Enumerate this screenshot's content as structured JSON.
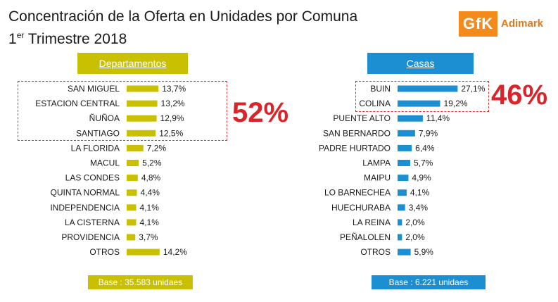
{
  "header": {
    "title": "Concentración de la Oferta en Unidades por Comuna",
    "subtitle_pre": "1",
    "subtitle_sup": "er",
    "subtitle_post": " Trimestre 2018"
  },
  "logo": {
    "mark": "GfK",
    "name": "Adimark",
    "color": "#f28a1c"
  },
  "panels": {
    "departamentos": {
      "title": "Departamentos",
      "highlight_pct": "52%",
      "base": "Base : 35.583 unidaes",
      "color": "#c8c000"
    },
    "casas": {
      "title": "Casas",
      "highlight_pct": "46%",
      "base": "Base : 6.221 unidaes",
      "color": "#1b8fd2"
    }
  },
  "chart_data": [
    {
      "type": "bar",
      "orientation": "horizontal",
      "title": "Departamentos",
      "categories": [
        "SAN MIGUEL",
        "ESTACION CENTRAL",
        "ÑUÑOA",
        "SANTIAGO",
        "LA FLORIDA",
        "MACUL",
        "LAS CONDES",
        "QUINTA NORMAL",
        "INDEPENDENCIA",
        "LA CISTERNA",
        "PROVIDENCIA",
        "OTROS"
      ],
      "values": [
        13.7,
        13.2,
        12.9,
        12.5,
        7.2,
        5.2,
        4.8,
        4.4,
        4.1,
        4.1,
        3.7,
        14.2
      ],
      "labels": [
        "13,7%",
        "13,2%",
        "12,9%",
        "12,5%",
        "7,2%",
        "5,2%",
        "4,8%",
        "4,4%",
        "4,1%",
        "4,1%",
        "3,7%",
        "14,2%"
      ],
      "unit": "%",
      "color": "#c8c000",
      "highlighted_count": 4,
      "highlighted_total": "52%"
    },
    {
      "type": "bar",
      "orientation": "horizontal",
      "title": "Casas",
      "categories": [
        "BUIN",
        "COLINA",
        "PUENTE ALTO",
        "SAN BERNARDO",
        "PADRE HURTADO",
        "LAMPA",
        "MAIPU",
        "LO BARNECHEA",
        "HUECHURABA",
        "LA REINA",
        "PEÑALOLEN",
        "OTROS"
      ],
      "values": [
        27.1,
        19.2,
        11.4,
        7.9,
        6.4,
        5.7,
        4.9,
        4.1,
        3.4,
        2.0,
        2.0,
        5.9
      ],
      "labels": [
        "27,1%",
        "19,2%",
        "11,4%",
        "7,9%",
        "6,4%",
        "5,7%",
        "4,9%",
        "4,1%",
        "3,4%",
        "2,0%",
        "2,0%",
        "5,9%"
      ],
      "unit": "%",
      "color": "#1b8fd2",
      "highlighted_count": 2,
      "highlighted_total": "46%"
    }
  ]
}
